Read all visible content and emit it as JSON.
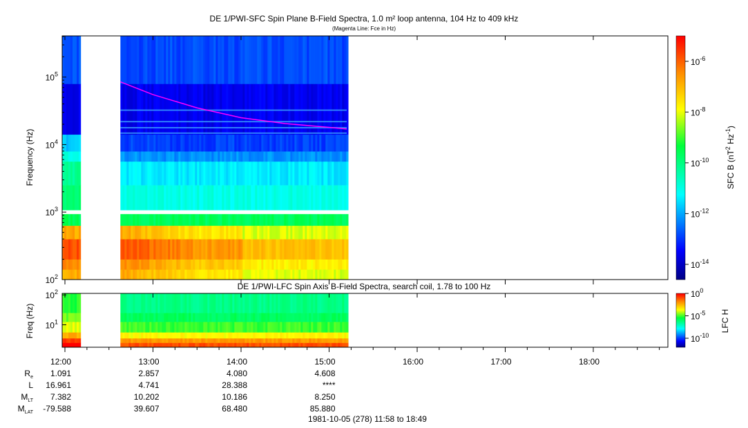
{
  "chart_data": {
    "type": "heatmap",
    "title": "DE 1/PWI-SFC  Spin Plane B-Field Spectra, 1.0 m² loop antenna, 104 Hz to 409 kHz",
    "subtitle": "(Magenta Line: Fce in Hz)",
    "upper": {
      "ylabel": "Frequency (Hz)",
      "ylim_log10": [
        2,
        5.61
      ],
      "yticks": [
        {
          "exp": "2",
          "v": 2
        },
        {
          "exp": "3",
          "v": 3
        },
        {
          "exp": "4",
          "v": 4
        },
        {
          "exp": "5",
          "v": 5
        }
      ],
      "colorbar_label": "SFC B (nT",
      "colorbar_label_parts": [
        "SFC B (nT",
        "2",
        " Hz",
        "-1",
        ")"
      ],
      "colorbar_range_log10": [
        -14.6,
        -5.0
      ],
      "colorbar_ticks": [
        {
          "exp": "-6",
          "v": -6
        },
        {
          "exp": "-8",
          "v": -8
        },
        {
          "exp": "-10",
          "v": -10
        },
        {
          "exp": "-12",
          "v": -12
        },
        {
          "exp": "-14",
          "v": -14
        }
      ],
      "bands_log_power": [
        {
          "f": [
            2.0,
            2.15
          ],
          "p": -7.6
        },
        {
          "f": [
            2.15,
            2.3
          ],
          "p": -7.2
        },
        {
          "f": [
            2.3,
            2.6
          ],
          "p": -6.6
        },
        {
          "f": [
            2.6,
            2.8
          ],
          "p": -7.6
        },
        {
          "f": [
            2.8,
            2.97
          ],
          "p": -9.6
        },
        {
          "f": [
            3.03,
            3.4
          ],
          "p": -11.0
        },
        {
          "f": [
            3.4,
            3.75
          ],
          "p": -11.4
        },
        {
          "f": [
            3.75,
            3.9
          ],
          "p": -12.2
        },
        {
          "f": [
            3.9,
            4.15
          ],
          "p": -12.9
        },
        {
          "f": [
            4.15,
            4.9
          ],
          "p": -13.6
        },
        {
          "f": [
            4.9,
            5.61
          ],
          "p": -12.8
        }
      ],
      "fce_curve": {
        "t": [
          12.63,
          13.0,
          13.5,
          14.0,
          14.5,
          15.0,
          15.2
        ],
        "f_hz": [
          85000,
          55000,
          35000,
          25000,
          20500,
          18000,
          17000
        ]
      }
    },
    "lower": {
      "title": "DE 1/PWI-LFC  Spin Axis B-Field Spectra, search coil, 1.78 to 100 Hz",
      "ylabel": "Freq (Hz)",
      "ylim_log10": [
        0.25,
        2.05
      ],
      "yticks": [
        {
          "exp": "1",
          "v": 1
        },
        {
          "exp": "2",
          "v": 2
        }
      ],
      "colorbar_label": "LFC H",
      "colorbar_range_log10": [
        -12,
        0
      ],
      "colorbar_ticks": [
        {
          "exp": "0",
          "v": 0
        },
        {
          "exp": "-5",
          "v": -5
        },
        {
          "exp": "-10",
          "v": -10
        }
      ],
      "bands_log_power": [
        {
          "f": [
            0.25,
            0.4
          ],
          "p": -1.0
        },
        {
          "f": [
            0.4,
            0.55
          ],
          "p": -2.0
        },
        {
          "f": [
            0.55,
            0.75
          ],
          "p": -3.5
        },
        {
          "f": [
            0.75,
            1.1
          ],
          "p": -5.0
        },
        {
          "f": [
            1.1,
            1.4
          ],
          "p": -5.8
        },
        {
          "f": [
            1.4,
            2.05
          ],
          "p": -6.3
        }
      ]
    },
    "time_range_hours": [
      11.967,
      18.817
    ],
    "data_intervals_hours": [
      [
        11.967,
        12.18
      ],
      [
        12.63,
        15.2
      ]
    ],
    "xticks": [
      "12:00",
      "13:00",
      "14:00",
      "15:00",
      "16:00",
      "17:00",
      "18:00"
    ],
    "xtick_hours": [
      12,
      13,
      14,
      15,
      16,
      17,
      18
    ],
    "ephemeris": {
      "labels": [
        {
          "main": "R",
          "sub": "e"
        },
        {
          "main": "L",
          "sub": ""
        },
        {
          "main": "M",
          "sub": "LT"
        },
        {
          "main": "M",
          "sub": "LAT"
        }
      ],
      "columns": [
        {
          "time": "12:00",
          "values": [
            "1.091",
            "16.961",
            "7.382",
            "-79.588"
          ]
        },
        {
          "time": "13:00",
          "values": [
            "2.857",
            "4.741",
            "10.202",
            "39.607"
          ]
        },
        {
          "time": "14:00",
          "values": [
            "4.080",
            "28.388",
            "10.186",
            "68.480"
          ]
        },
        {
          "time": "15:00",
          "values": [
            "4.608",
            "****",
            "8.250",
            "85.880"
          ]
        }
      ]
    },
    "footer": "1981-10-05 (278) 11:58 to 18:49",
    "colors": {
      "fce_line": "#ff00ff"
    }
  }
}
